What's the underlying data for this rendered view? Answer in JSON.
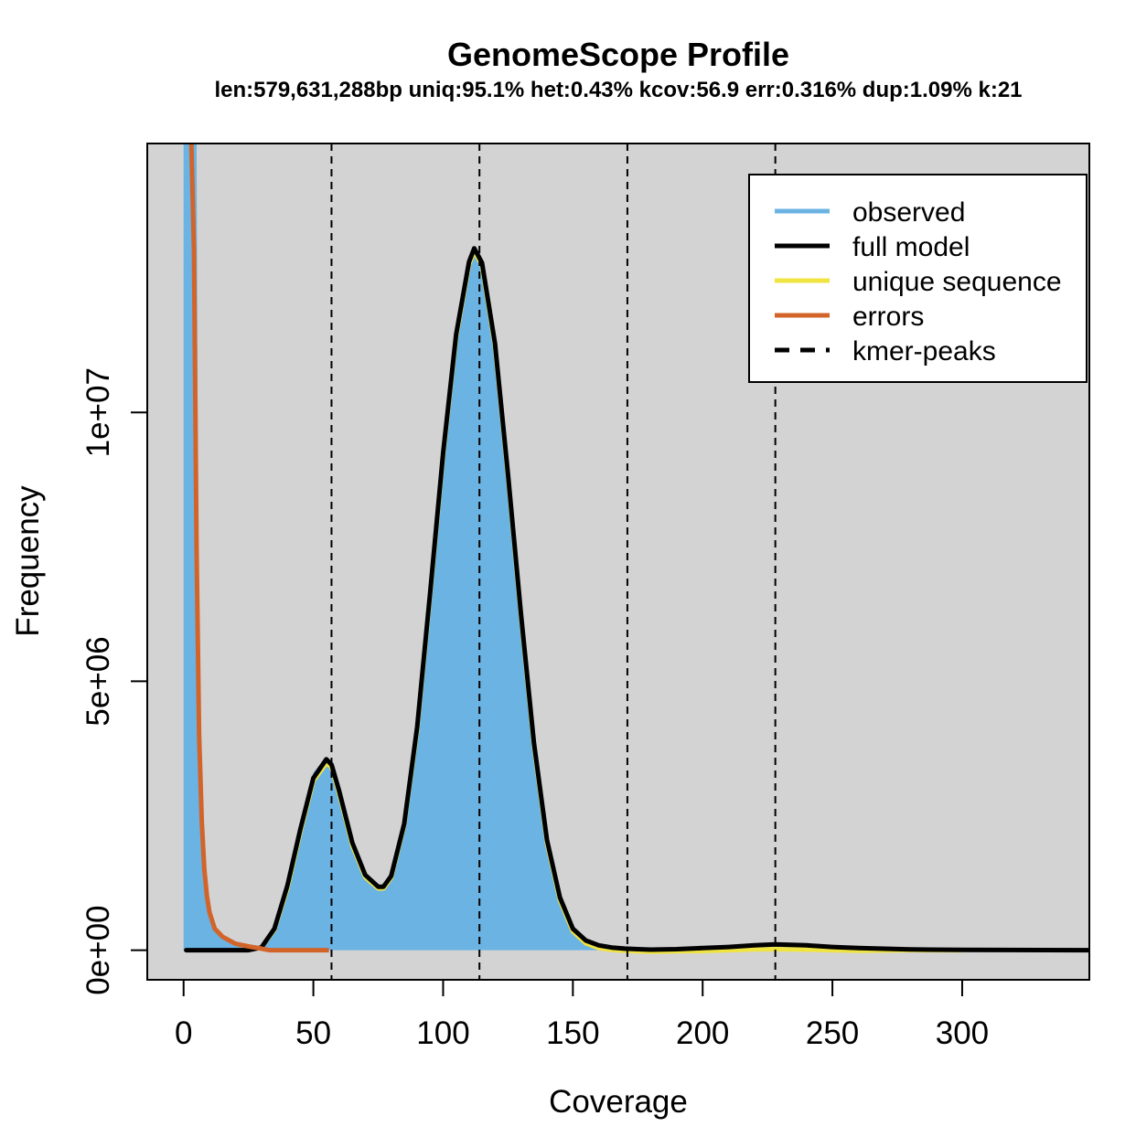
{
  "chart_data": {
    "type": "area",
    "title": "GenomeScope Profile",
    "subtitle": "len:579,631,288bp uniq:95.1%  het:0.43% kcov:56.9 err:0.316%  dup:1.09%  k:21",
    "xlabel": "Coverage",
    "ylabel": "Frequency",
    "xlim": [
      -14,
      349
    ],
    "ylim": [
      -550000,
      15000000
    ],
    "x_ticks": [
      0,
      50,
      100,
      150,
      200,
      250,
      300
    ],
    "x_tick_labels": [
      "0",
      "50",
      "100",
      "150",
      "200",
      "250",
      "300"
    ],
    "y_ticks": [
      0,
      5000000,
      10000000
    ],
    "y_tick_labels": [
      "0e+00",
      "5e+06",
      "1e+07"
    ],
    "kmer_peaks": [
      57,
      114,
      171,
      228
    ],
    "background_color": "#d3d3d3",
    "legend": {
      "position": "top-right",
      "entries": [
        {
          "label": "observed",
          "color": "#6bb3e3",
          "style": "solid"
        },
        {
          "label": "full model",
          "color": "#000000",
          "style": "solid"
        },
        {
          "label": "unique sequence",
          "color": "#f0e442",
          "style": "solid"
        },
        {
          "label": "errors",
          "color": "#d2642a",
          "style": "solid"
        },
        {
          "label": "kmer-peaks",
          "color": "#000000",
          "style": "dashed"
        }
      ]
    },
    "series": [
      {
        "name": "observed",
        "color": "#6bb3e3",
        "x": [
          0,
          1,
          2,
          3,
          4,
          5,
          6,
          8,
          10,
          15,
          20,
          25,
          30,
          35,
          40,
          45,
          50,
          55,
          57,
          60,
          65,
          70,
          75,
          77,
          80,
          85,
          90,
          95,
          100,
          105,
          110,
          112,
          115,
          120,
          125,
          130,
          135,
          140,
          145,
          150,
          155,
          160,
          165,
          170,
          175,
          180,
          190,
          200,
          210,
          220,
          228,
          240,
          250,
          260,
          280,
          300,
          349
        ],
        "y": [
          15000000,
          15000000,
          15000000,
          15000000,
          15000000,
          15000000,
          3500000,
          1200000,
          600000,
          250000,
          130000,
          70000,
          70000,
          400000,
          1200000,
          2300000,
          3300000,
          3600000,
          3500000,
          3000000,
          2050000,
          1450000,
          1180000,
          1180000,
          1400000,
          2400000,
          4200000,
          6700000,
          9300000,
          11500000,
          12850000,
          13050000,
          12800000,
          11300000,
          8900000,
          6300000,
          3900000,
          2100000,
          1000000,
          420000,
          200000,
          110000,
          70000,
          50000,
          40000,
          30000,
          30000,
          40000,
          60000,
          90000,
          110000,
          90000,
          60000,
          40000,
          20000,
          10000,
          0
        ]
      },
      {
        "name": "full model",
        "color": "#000000",
        "x": [
          1,
          10,
          20,
          25,
          30,
          35,
          40,
          45,
          50,
          55,
          57,
          60,
          65,
          70,
          75,
          77,
          80,
          85,
          90,
          95,
          100,
          105,
          110,
          112,
          115,
          120,
          125,
          130,
          135,
          140,
          145,
          150,
          155,
          160,
          165,
          170,
          175,
          180,
          190,
          200,
          210,
          220,
          228,
          240,
          250,
          260,
          280,
          300,
          349
        ],
        "y": [
          0,
          0,
          0,
          0,
          50000,
          400000,
          1200000,
          2250000,
          3200000,
          3550000,
          3450000,
          2950000,
          2000000,
          1400000,
          1180000,
          1180000,
          1380000,
          2350000,
          4150000,
          6650000,
          9250000,
          11450000,
          12800000,
          13050000,
          12780000,
          11280000,
          8850000,
          6250000,
          3850000,
          2050000,
          980000,
          400000,
          180000,
          90000,
          50000,
          30000,
          20000,
          10000,
          20000,
          40000,
          60000,
          90000,
          110000,
          90000,
          60000,
          40000,
          15000,
          5000,
          0
        ]
      },
      {
        "name": "unique sequence",
        "color": "#f0e442",
        "x": [
          30,
          35,
          40,
          45,
          50,
          55,
          57,
          60,
          65,
          70,
          75,
          77,
          80,
          85,
          90,
          95,
          100,
          105,
          110,
          112,
          115,
          120,
          125,
          130,
          135,
          140,
          145,
          150,
          155,
          160,
          165,
          170,
          175,
          180,
          190,
          200,
          210,
          220,
          228,
          240,
          250,
          260,
          280,
          300
        ],
        "y": [
          50000,
          380000,
          1150000,
          2200000,
          3150000,
          3480000,
          3400000,
          2900000,
          1950000,
          1360000,
          1150000,
          1150000,
          1350000,
          2320000,
          4100000,
          6600000,
          9200000,
          11400000,
          12750000,
          13000000,
          12730000,
          11230000,
          8800000,
          6200000,
          3800000,
          2000000,
          930000,
          350000,
          130000,
          40000,
          5000,
          -10000,
          -20000,
          -30000,
          -20000,
          -15000,
          0,
          15000,
          20000,
          10000,
          0,
          -10000,
          0,
          0
        ]
      },
      {
        "name": "errors",
        "color": "#d2642a",
        "x": [
          3,
          4,
          5,
          6,
          7,
          8,
          9,
          10,
          12,
          15,
          20,
          25,
          30,
          33,
          40,
          50,
          56
        ],
        "y": [
          15000000,
          13000000,
          7500000,
          4000000,
          2400000,
          1500000,
          1000000,
          700000,
          400000,
          250000,
          120000,
          70000,
          30000,
          0,
          0,
          0,
          0
        ]
      }
    ]
  }
}
